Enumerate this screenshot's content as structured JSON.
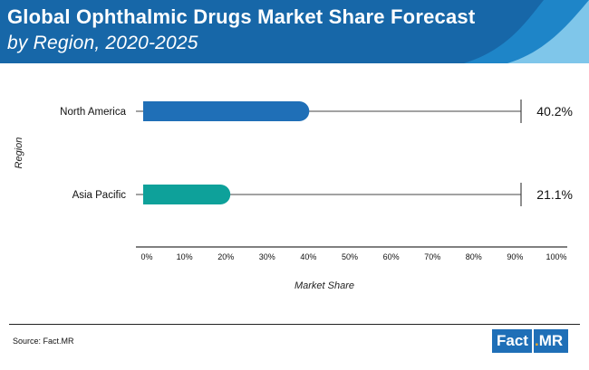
{
  "header": {
    "title_line1": "Global Ophthalmic Drugs Market Share Forecast",
    "title_line2": "by Region, 2020-2025",
    "colors": {
      "dark": "#1767a8",
      "mid": "#1e85c8",
      "light": "#7fc6ea"
    }
  },
  "chart_data": {
    "type": "bar",
    "orientation": "horizontal",
    "categories": [
      "North America",
      "Asia Pacific"
    ],
    "values": [
      40.2,
      21.1
    ],
    "value_labels": [
      "40.2%",
      "21.1%"
    ],
    "bar_colors": [
      "#1f6fb7",
      "#0ea19a"
    ],
    "xlabel": "Market Share",
    "ylabel": "Region",
    "xlim": [
      0,
      100
    ],
    "xticks": [
      "0%",
      "10%",
      "20%",
      "30%",
      "40%",
      "50%",
      "60%",
      "70%",
      "80%",
      "90%",
      "100%"
    ],
    "grid": false
  },
  "footer": {
    "source": "Source: Fact.MR",
    "logo_fact": "Fact",
    "logo_dot": ".",
    "logo_mr": "MR"
  }
}
